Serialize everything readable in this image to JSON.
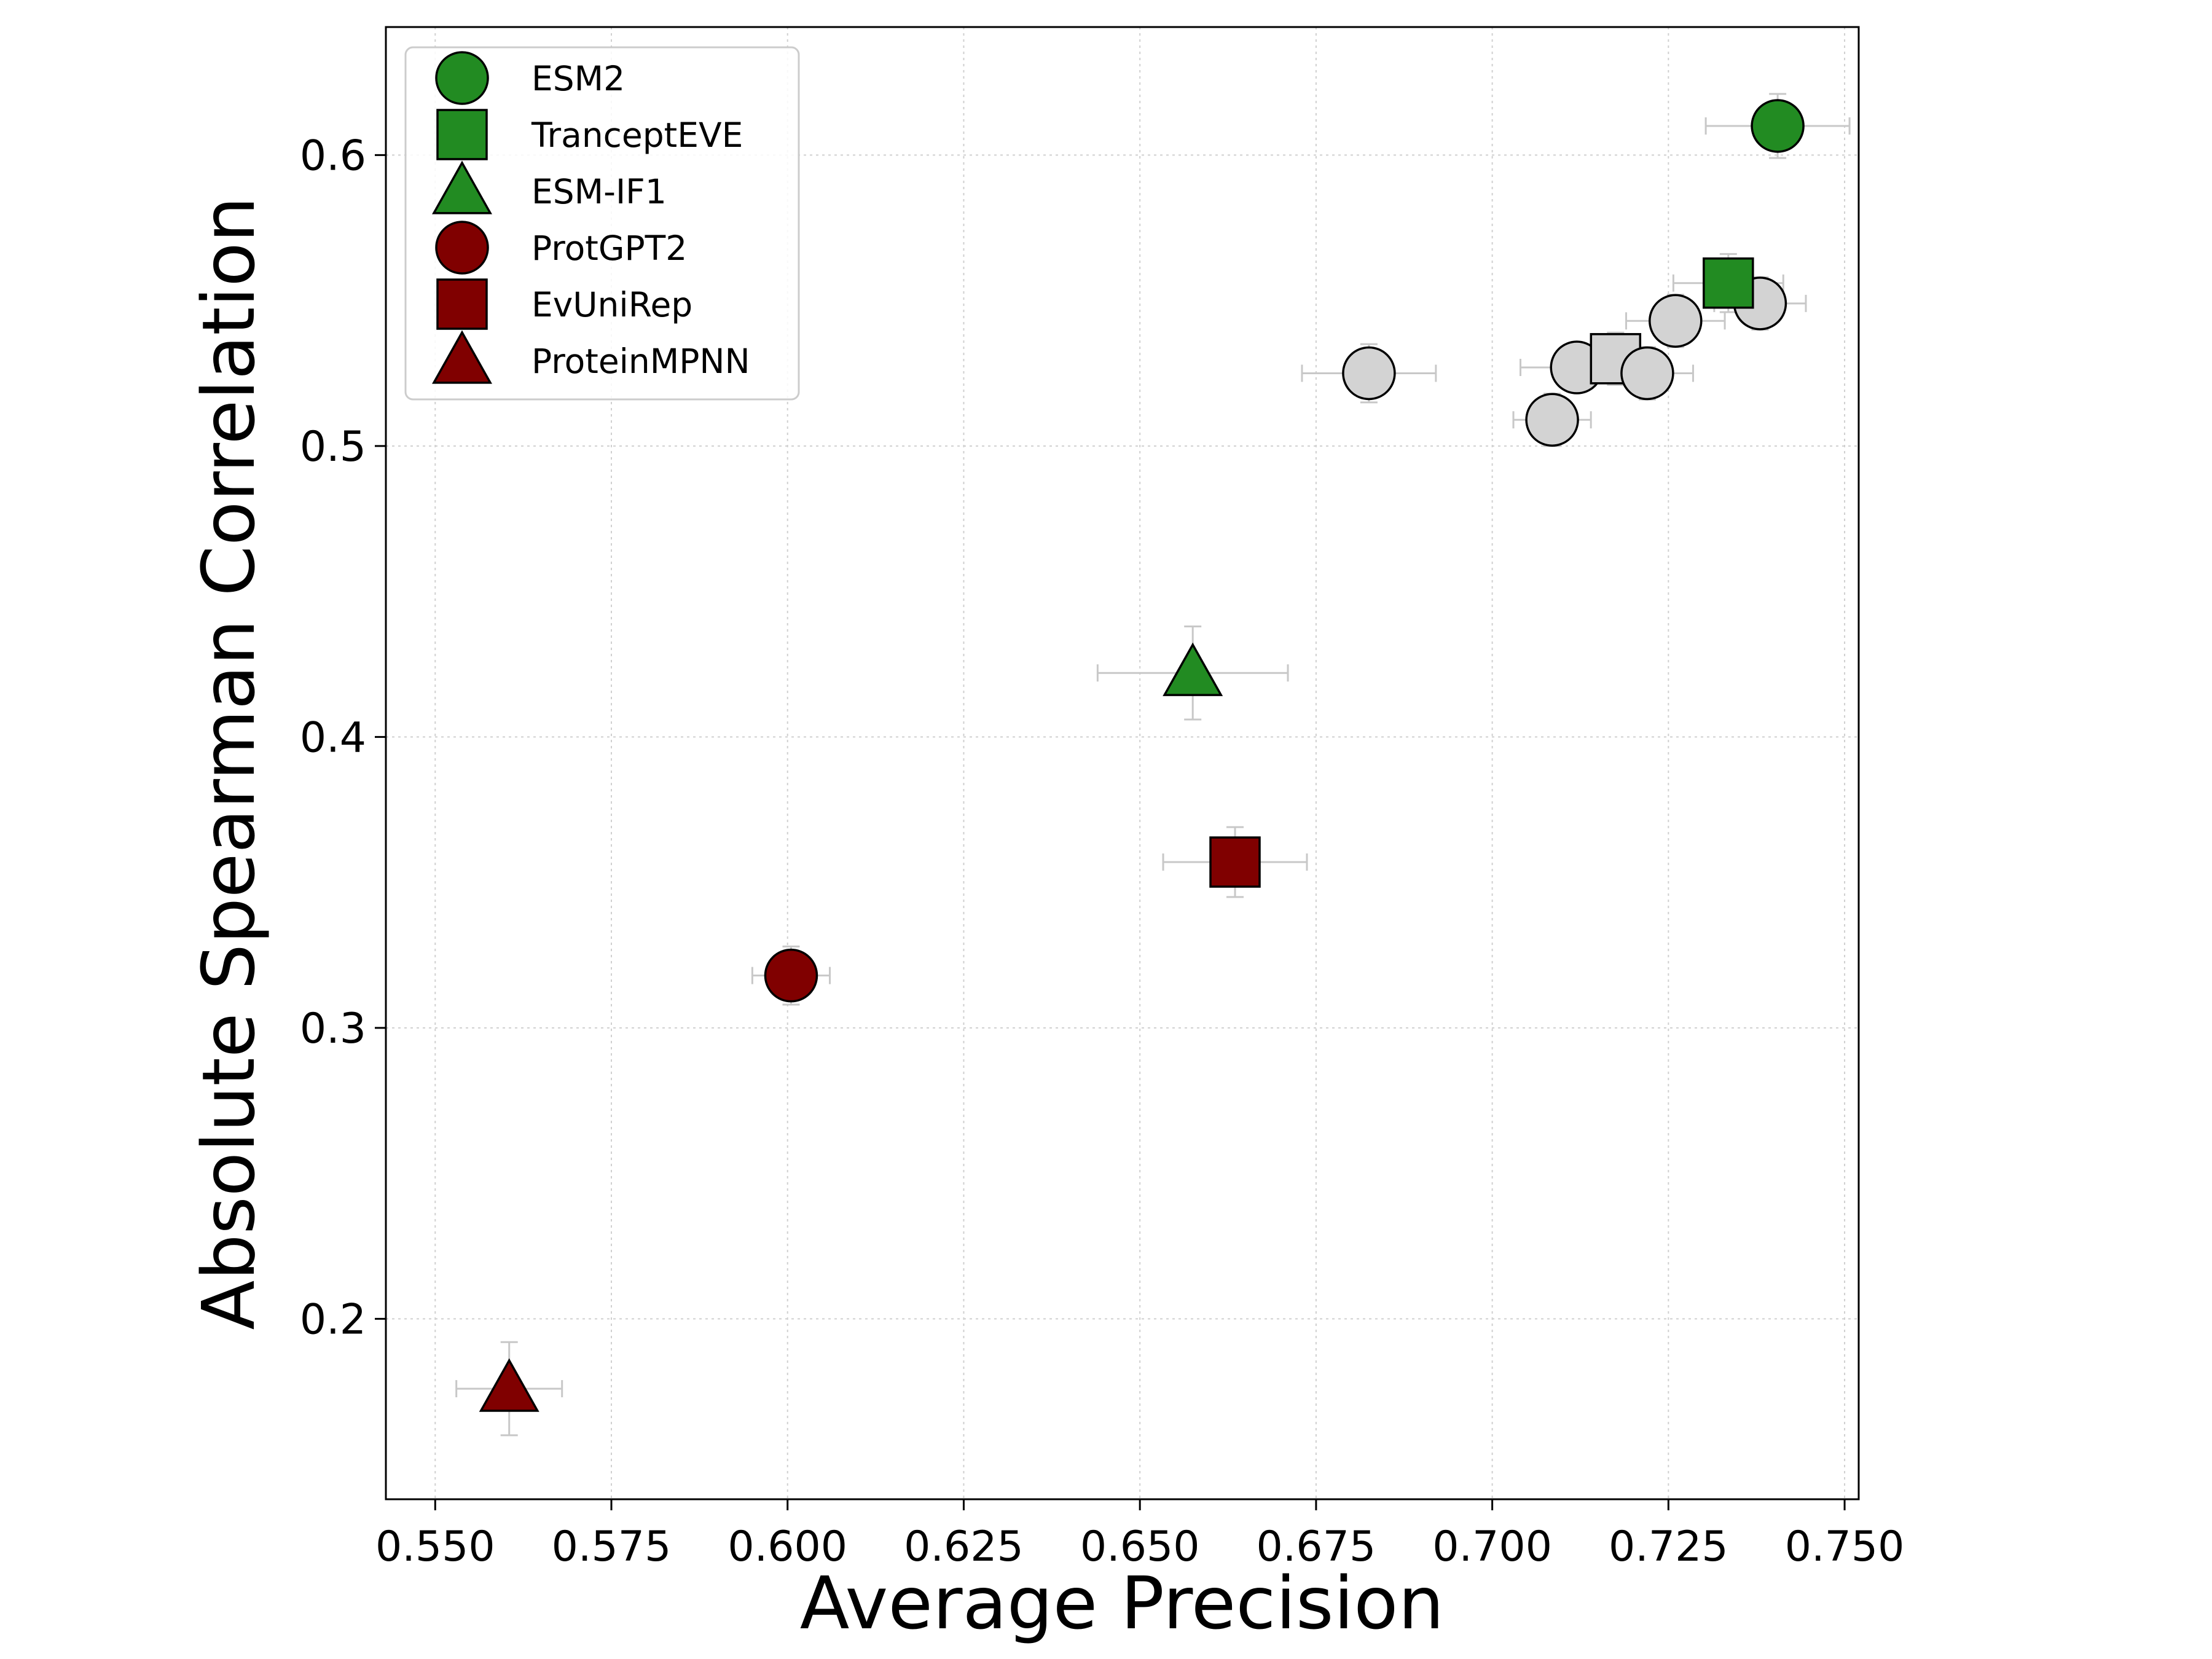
{
  "chart_data": {
    "type": "scatter",
    "title": "",
    "xlabel": "Average Precision",
    "ylabel": "Absolute Spearman Correlation",
    "xlim": [
      0.543,
      0.752
    ],
    "ylim": [
      0.138,
      0.644
    ],
    "xticks": [
      "0.550",
      "0.575",
      "0.600",
      "0.625",
      "0.650",
      "0.675",
      "0.700",
      "0.725",
      "0.750"
    ],
    "yticks": [
      "0.2",
      "0.3",
      "0.4",
      "0.5",
      "0.6"
    ],
    "grid": true,
    "legend_position": "top-left",
    "colors": {
      "green": "#228b22",
      "red": "#800000",
      "gray": "#d3d3d3",
      "errorbar": "#c8c8c8"
    },
    "series": [
      {
        "name": "ESM2",
        "marker": "circle",
        "color": "#228b22",
        "x": 0.7405,
        "y": 0.61,
        "xerr": 0.0102,
        "yerr": 0.011
      },
      {
        "name": "TranceptEVE",
        "marker": "square",
        "color": "#228b22",
        "x": 0.7335,
        "y": 0.556,
        "xerr": 0.0078,
        "yerr": 0.01
      },
      {
        "name": "ESM-IF1",
        "marker": "triangle",
        "color": "#228b22",
        "x": 0.6575,
        "y": 0.422,
        "xerr": 0.0135,
        "yerr": 0.016
      },
      {
        "name": "ProtGPT2",
        "marker": "circle",
        "color": "#800000",
        "x": 0.6005,
        "y": 0.318,
        "xerr": 0.0055,
        "yerr": 0.01
      },
      {
        "name": "EvUniRep",
        "marker": "square",
        "color": "#800000",
        "x": 0.6635,
        "y": 0.357,
        "xerr": 0.0102,
        "yerr": 0.012
      },
      {
        "name": "ProteinMPNN",
        "marker": "triangle",
        "color": "#800000",
        "x": 0.5605,
        "y": 0.176,
        "xerr": 0.0075,
        "yerr": 0.016
      }
    ],
    "unlabeled_points": [
      {
        "marker": "circle",
        "x": 0.6825,
        "y": 0.525,
        "xerr": 0.0095,
        "yerr": 0.01
      },
      {
        "marker": "circle",
        "x": 0.7085,
        "y": 0.509,
        "xerr": 0.0055,
        "yerr": 0.009
      },
      {
        "marker": "circle",
        "x": 0.712,
        "y": 0.527,
        "xerr": 0.008,
        "yerr": 0.008
      },
      {
        "marker": "square",
        "x": 0.7175,
        "y": 0.53,
        "xerr": 0.0065,
        "yerr": 0.009
      },
      {
        "marker": "circle",
        "x": 0.722,
        "y": 0.525,
        "xerr": 0.0065,
        "yerr": 0.009
      },
      {
        "marker": "circle",
        "x": 0.726,
        "y": 0.543,
        "xerr": 0.007,
        "yerr": 0.009
      },
      {
        "marker": "circle",
        "x": 0.738,
        "y": 0.549,
        "xerr": 0.0065,
        "yerr": 0.009
      }
    ]
  }
}
